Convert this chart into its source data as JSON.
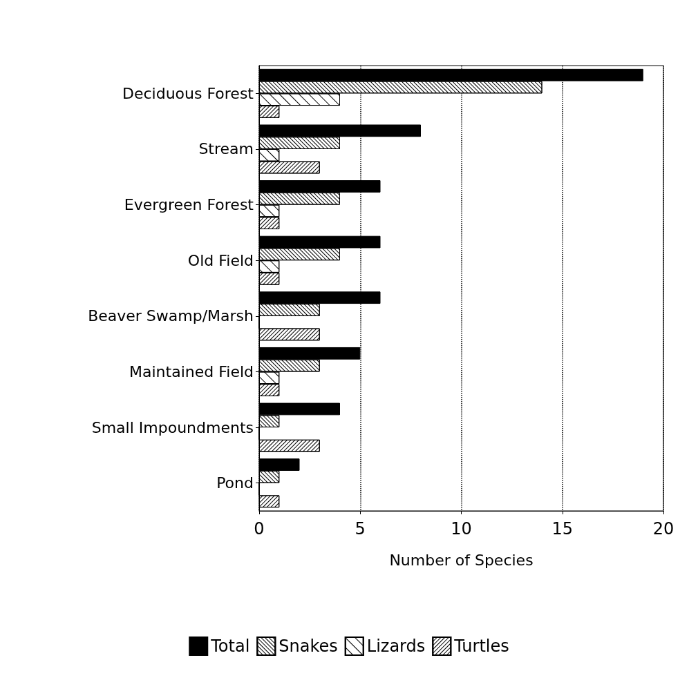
{
  "chart_data": {
    "type": "bar",
    "orientation": "horizontal",
    "xlabel": "Number of Species",
    "categories": [
      "Deciduous Forest",
      "Stream",
      "Evergreen Forest",
      "Old Field",
      "Beaver Swamp/Marsh",
      "Maintained Field",
      "Small Impoundments",
      "Pond"
    ],
    "series": [
      {
        "name": "Total",
        "color": "#000000",
        "values": [
          19,
          8,
          6,
          6,
          6,
          5,
          4,
          2
        ]
      },
      {
        "name": "Snakes",
        "color": "#ffffff",
        "values": [
          14,
          4,
          4,
          4,
          3,
          3,
          1,
          1
        ]
      },
      {
        "name": "Lizards",
        "color": "#ffffff",
        "values": [
          4,
          1,
          1,
          1,
          0,
          1,
          0,
          0
        ]
      },
      {
        "name": "Turtles",
        "color": "#ffffff",
        "values": [
          1,
          3,
          1,
          1,
          3,
          1,
          3,
          1
        ]
      }
    ],
    "xlim": [
      0,
      20
    ],
    "xticks": [
      0,
      5,
      10,
      15,
      20
    ],
    "grid": "x",
    "legend": "bottom"
  }
}
